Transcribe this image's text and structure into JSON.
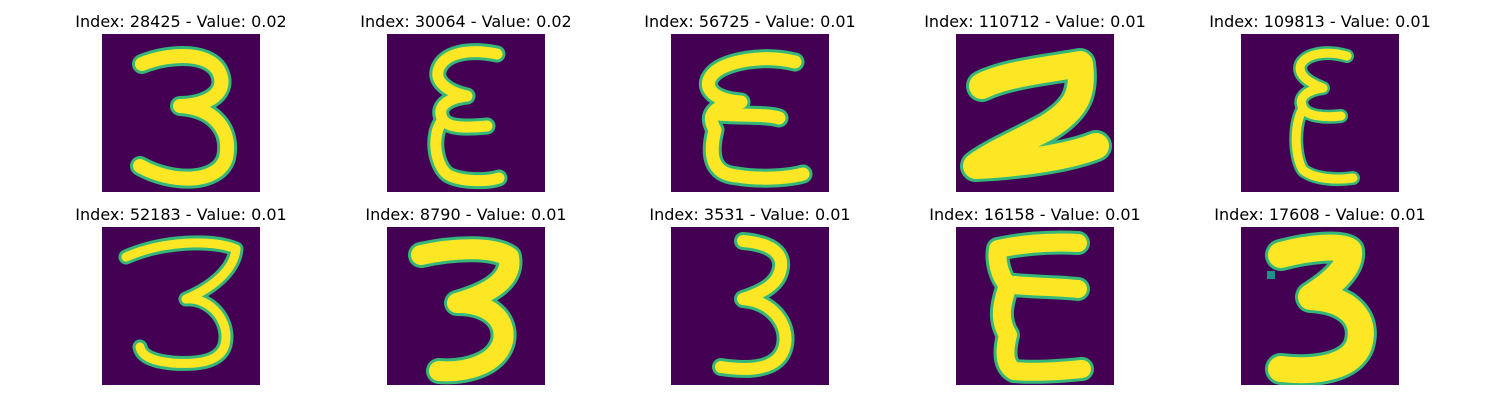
{
  "colors": {
    "background": "#440154",
    "stroke": "#fde725",
    "edge": "#35b779",
    "mid": "#21918c"
  },
  "panels": [
    {
      "title": "Index: 28425 - Value: 0.02",
      "glyph": "3a"
    },
    {
      "title": "Index: 30064 - Value: 0.02",
      "glyph": "E1"
    },
    {
      "title": "Index: 56725 - Value: 0.01",
      "glyph": "E2"
    },
    {
      "title": "Index: 110712 - Value: 0.01",
      "glyph": "Z"
    },
    {
      "title": "Index: 109813 - Value: 0.01",
      "glyph": "E3"
    },
    {
      "title": "Index: 52183 - Value: 0.01",
      "glyph": "3b"
    },
    {
      "title": "Index: 8790 - Value: 0.01",
      "glyph": "3c"
    },
    {
      "title": "Index: 3531 - Value: 0.01",
      "glyph": "3d"
    },
    {
      "title": "Index: 16158 - Value: 0.01",
      "glyph": "E4"
    },
    {
      "title": "Index: 17608 - Value: 0.01",
      "glyph": "3e"
    }
  ]
}
